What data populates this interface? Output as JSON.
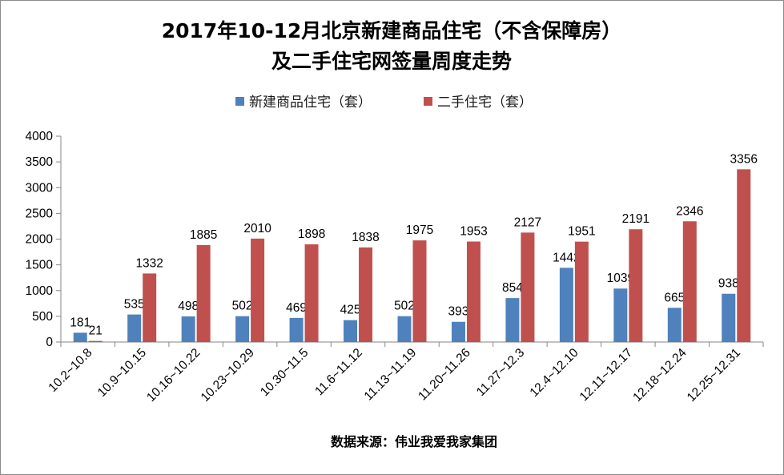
{
  "chart_data": {
    "type": "bar",
    "title_line1": "2017年10-12月北京新建商品住宅（不含保障房）",
    "title_line2": "及二手住宅网签量周度走势",
    "categories": [
      "10.2~10.8",
      "10.9~10.15",
      "10.16~10.22",
      "10.23~10.29",
      "10.30~11.5",
      "11.6~11.12",
      "11.13~11.19",
      "11.20~11.26",
      "11.27~12.3",
      "12.4~12.10",
      "12.11~12.17",
      "12.18~12.24",
      "12.25~12.31"
    ],
    "series": [
      {
        "name": "新建商品住宅（套）",
        "color": "#4f81bd",
        "values": [
          181,
          535,
          498,
          502,
          469,
          425,
          502,
          393,
          854,
          1442,
          1039,
          665,
          938
        ]
      },
      {
        "name": "二手住宅（套）",
        "color": "#c0504d",
        "values": [
          21,
          1332,
          1885,
          2010,
          1898,
          1838,
          1975,
          1953,
          2127,
          1951,
          2191,
          2346,
          3356
        ]
      }
    ],
    "ylim": [
      0,
      4000
    ],
    "yticks": [
      0,
      500,
      1000,
      1500,
      2000,
      2500,
      3000,
      3500,
      4000
    ],
    "grid": false,
    "legend_position": "top",
    "source": "数据来源：伟业我爱我家集团"
  }
}
